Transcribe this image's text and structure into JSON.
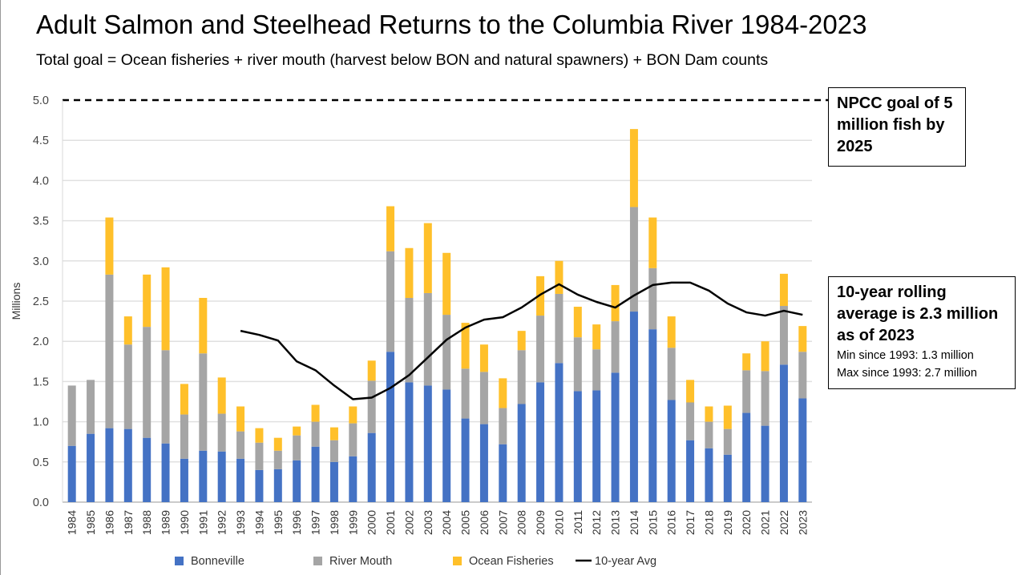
{
  "title": "Adult Salmon and Steelhead Returns to the Columbia River 1984-2023",
  "subtitle": "Total goal = Ocean fisheries + river mouth (harvest below BON and natural spawners) + BON Dam counts",
  "annotations": {
    "goal_box": "NPCC goal of 5 million fish by 2025",
    "avg_box_title": "10-year rolling average is 2.3 million as of 2023",
    "avg_box_min": "Min since 1993: 1.3 million",
    "avg_box_max": "Max since 1993: 2.7 million"
  },
  "chart_data": {
    "type": "bar",
    "stacked": true,
    "ylabel": "Millions",
    "xlabel": "",
    "ylim": [
      0,
      5.0
    ],
    "yticks": [
      "0.0",
      "0.5",
      "1.0",
      "1.5",
      "2.0",
      "2.5",
      "3.0",
      "3.5",
      "4.0",
      "4.5",
      "5.0"
    ],
    "grid": true,
    "legend": "bottom",
    "goal_line": {
      "value": 5.0,
      "style": "dashed"
    },
    "categories": [
      "1984",
      "1985",
      "1986",
      "1987",
      "1988",
      "1989",
      "1990",
      "1991",
      "1992",
      "1993",
      "1994",
      "1995",
      "1996",
      "1997",
      "1998",
      "1999",
      "2000",
      "2001",
      "2002",
      "2003",
      "2004",
      "2005",
      "2006",
      "2007",
      "2008",
      "2009",
      "2010",
      "2011",
      "2012",
      "2013",
      "2014",
      "2015",
      "2016",
      "2017",
      "2018",
      "2019",
      "2020",
      "2021",
      "2022",
      "2023"
    ],
    "series": [
      {
        "name": "Bonneville",
        "color": "#4472c4",
        "values": [
          0.7,
          0.85,
          0.92,
          0.91,
          0.8,
          0.73,
          0.54,
          0.64,
          0.63,
          0.54,
          0.4,
          0.41,
          0.52,
          0.69,
          0.5,
          0.57,
          0.86,
          1.87,
          1.49,
          1.45,
          1.4,
          1.04,
          0.97,
          0.72,
          1.22,
          1.49,
          1.73,
          1.38,
          1.39,
          1.61,
          2.37,
          2.15,
          1.27,
          0.77,
          0.67,
          0.59,
          1.11,
          0.95,
          1.71,
          1.29
        ]
      },
      {
        "name": "River Mouth",
        "color": "#a5a5a5",
        "values": [
          0.75,
          0.67,
          1.91,
          1.05,
          1.38,
          1.16,
          0.55,
          1.21,
          0.47,
          0.34,
          0.34,
          0.23,
          0.31,
          0.31,
          0.27,
          0.41,
          0.65,
          1.25,
          1.05,
          1.15,
          0.93,
          0.62,
          0.65,
          0.45,
          0.67,
          0.83,
          0.86,
          0.67,
          0.51,
          0.64,
          1.3,
          0.76,
          0.65,
          0.47,
          0.33,
          0.32,
          0.53,
          0.68,
          0.73,
          0.58
        ]
      },
      {
        "name": "Ocean Fisheries",
        "color": "#ffc02a",
        "values": [
          0.0,
          0.0,
          0.71,
          0.35,
          0.65,
          1.03,
          0.38,
          0.69,
          0.45,
          0.31,
          0.18,
          0.16,
          0.11,
          0.21,
          0.16,
          0.21,
          0.25,
          0.56,
          0.62,
          0.87,
          0.77,
          0.57,
          0.34,
          0.37,
          0.24,
          0.49,
          0.41,
          0.38,
          0.31,
          0.45,
          0.97,
          0.63,
          0.39,
          0.28,
          0.19,
          0.29,
          0.21,
          0.37,
          0.4,
          0.32
        ]
      },
      {
        "name": "10-year Avg",
        "type": "line",
        "color": "#000000",
        "values": [
          null,
          null,
          null,
          null,
          null,
          null,
          null,
          null,
          null,
          2.13,
          2.08,
          2.01,
          1.75,
          1.64,
          1.45,
          1.28,
          1.3,
          1.42,
          1.58,
          1.8,
          2.02,
          2.17,
          2.27,
          2.3,
          2.42,
          2.58,
          2.71,
          2.58,
          2.49,
          2.42,
          2.57,
          2.7,
          2.73,
          2.73,
          2.63,
          2.47,
          2.36,
          2.32,
          2.38,
          2.33
        ]
      }
    ]
  }
}
